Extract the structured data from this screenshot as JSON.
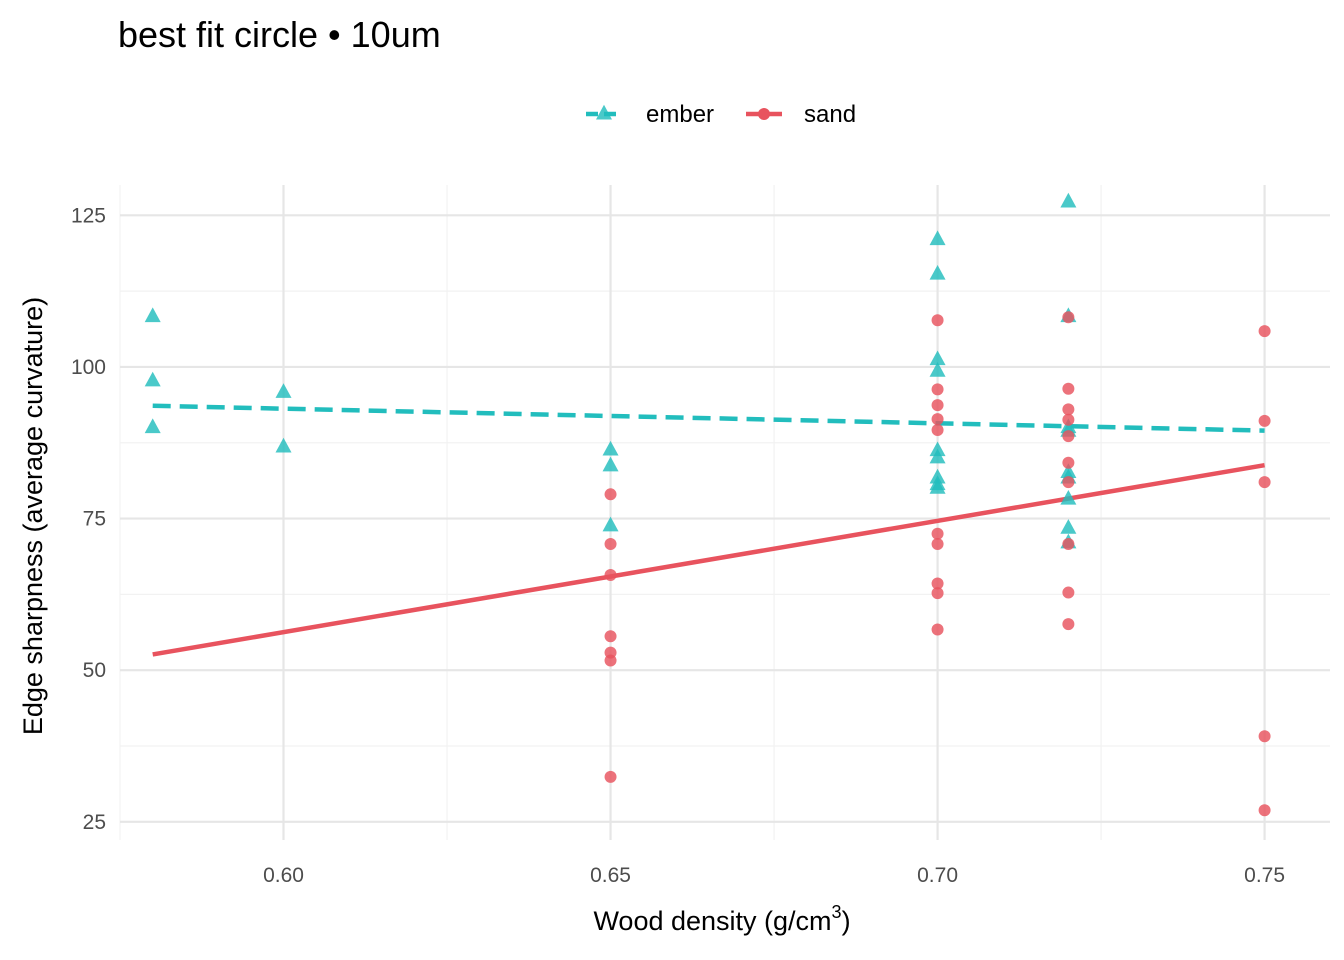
{
  "colors": {
    "ember": "#22BDBD",
    "sand": "#E8535E",
    "grid_major": "#E6E6E6",
    "grid_minor": "#F2F2F2"
  },
  "chart_data": {
    "type": "scatter",
    "title": "best fit circle • 10um",
    "xlabel": "Wood density (g/cm",
    "xlabel_sup": "3",
    "xlabel_end": ")",
    "ylabel": "Edge sharpness (average curvature)",
    "xlim": [
      0.575,
      0.76
    ],
    "ylim": [
      22,
      130
    ],
    "x_ticks": [
      0.6,
      0.65,
      0.7,
      0.75
    ],
    "x_tick_labels": [
      "0.60",
      "0.65",
      "0.70",
      "0.75"
    ],
    "y_ticks": [
      25,
      50,
      75,
      100,
      125
    ],
    "y_tick_labels": [
      "25",
      "50",
      "75",
      "100",
      "125"
    ],
    "grid": true,
    "legend_position": "top",
    "series": [
      {
        "name": "ember",
        "marker": "triangle",
        "line_style": "dashed",
        "color": "#22BDBD",
        "points": [
          [
            0.58,
            108.3
          ],
          [
            0.58,
            97.7
          ],
          [
            0.58,
            90.0
          ],
          [
            0.6,
            95.8
          ],
          [
            0.6,
            86.8
          ],
          [
            0.65,
            86.3
          ],
          [
            0.65,
            83.7
          ],
          [
            0.65,
            73.8
          ],
          [
            0.7,
            121.0
          ],
          [
            0.7,
            115.3
          ],
          [
            0.7,
            101.2
          ],
          [
            0.7,
            99.3
          ],
          [
            0.7,
            86.2
          ],
          [
            0.7,
            85.0
          ],
          [
            0.7,
            81.7
          ],
          [
            0.7,
            80.6
          ],
          [
            0.7,
            80.0
          ],
          [
            0.72,
            127.2
          ],
          [
            0.72,
            108.3
          ],
          [
            0.72,
            90.0
          ],
          [
            0.72,
            89.4
          ],
          [
            0.72,
            82.6
          ],
          [
            0.72,
            81.7
          ],
          [
            0.72,
            78.2
          ],
          [
            0.72,
            73.4
          ],
          [
            0.72,
            71.0
          ]
        ],
        "fit": [
          [
            0.58,
            93.6
          ],
          [
            0.75,
            89.5
          ]
        ]
      },
      {
        "name": "sand",
        "marker": "circle",
        "line_style": "solid",
        "color": "#E8535E",
        "points": [
          [
            0.65,
            79.0
          ],
          [
            0.65,
            70.8
          ],
          [
            0.65,
            65.7
          ],
          [
            0.65,
            55.6
          ],
          [
            0.65,
            52.9
          ],
          [
            0.65,
            51.6
          ],
          [
            0.65,
            32.4
          ],
          [
            0.7,
            107.7
          ],
          [
            0.7,
            96.3
          ],
          [
            0.7,
            93.7
          ],
          [
            0.7,
            91.4
          ],
          [
            0.7,
            89.6
          ],
          [
            0.7,
            72.5
          ],
          [
            0.7,
            70.8
          ],
          [
            0.7,
            64.3
          ],
          [
            0.7,
            62.7
          ],
          [
            0.7,
            56.7
          ],
          [
            0.72,
            108.2
          ],
          [
            0.72,
            96.4
          ],
          [
            0.72,
            93.0
          ],
          [
            0.72,
            91.3
          ],
          [
            0.72,
            88.6
          ],
          [
            0.72,
            84.2
          ],
          [
            0.72,
            81.0
          ],
          [
            0.72,
            70.8
          ],
          [
            0.72,
            62.8
          ],
          [
            0.72,
            57.6
          ],
          [
            0.75,
            105.9
          ],
          [
            0.75,
            91.1
          ],
          [
            0.75,
            81.0
          ],
          [
            0.75,
            39.1
          ],
          [
            0.75,
            26.9
          ]
        ],
        "fit": [
          [
            0.58,
            52.6
          ],
          [
            0.75,
            83.8
          ]
        ]
      }
    ]
  }
}
